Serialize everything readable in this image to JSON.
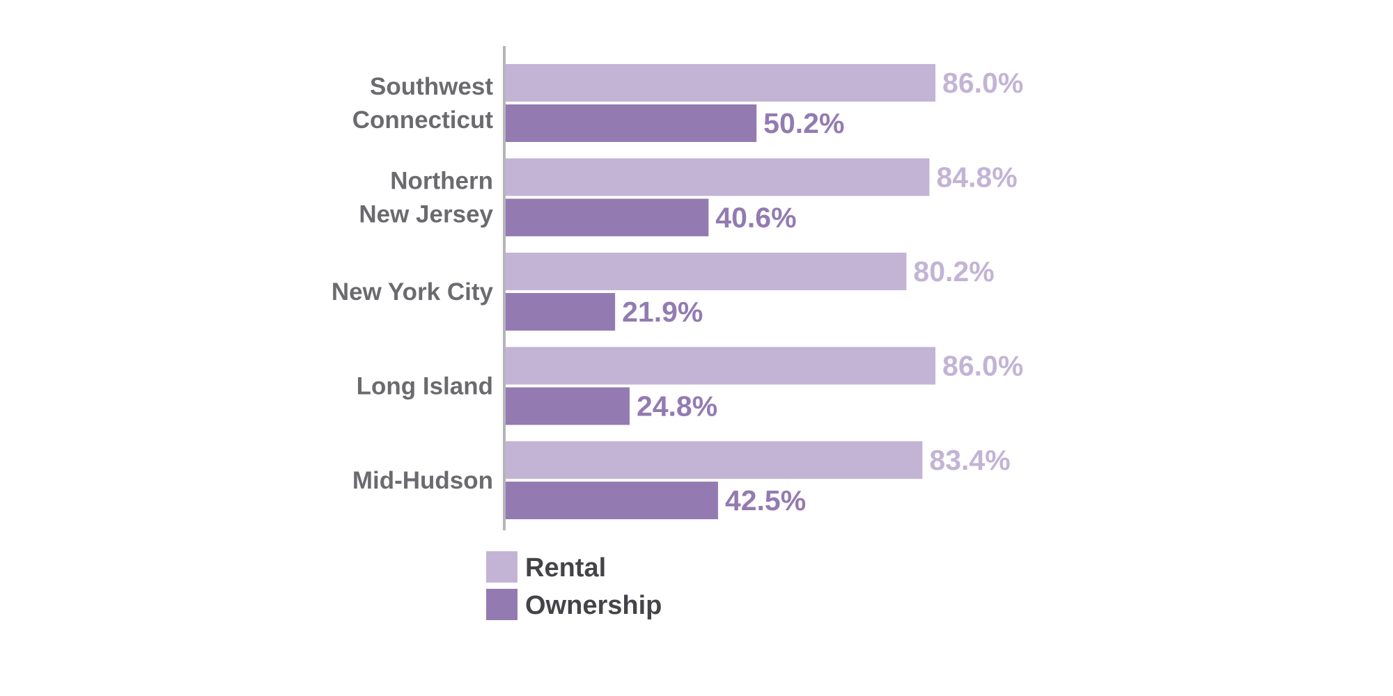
{
  "chart_data": {
    "type": "bar",
    "orientation": "horizontal",
    "categories": [
      [
        "Southwest",
        "Connecticut"
      ],
      [
        "Northern",
        "New Jersey"
      ],
      [
        "New York City"
      ],
      [
        "Long Island"
      ],
      [
        "Mid-Hudson"
      ]
    ],
    "series": [
      {
        "name": "Rental",
        "color": "#c3b4d5",
        "values": [
          86.0,
          84.8,
          80.2,
          86.0,
          83.4
        ],
        "labels": [
          "86.0%",
          "84.8%",
          "80.2%",
          "86.0%",
          "83.4%"
        ]
      },
      {
        "name": "Ownership",
        "color": "#937bb1",
        "values": [
          50.2,
          40.6,
          21.9,
          24.8,
          42.5
        ],
        "labels": [
          "50.2%",
          "40.6%",
          "21.9%",
          "24.8%",
          "42.5%"
        ]
      }
    ],
    "xlim": [
      0,
      100
    ],
    "grid": false,
    "legend_position": "bottom-left",
    "axis_color": "#b5b5b8"
  }
}
